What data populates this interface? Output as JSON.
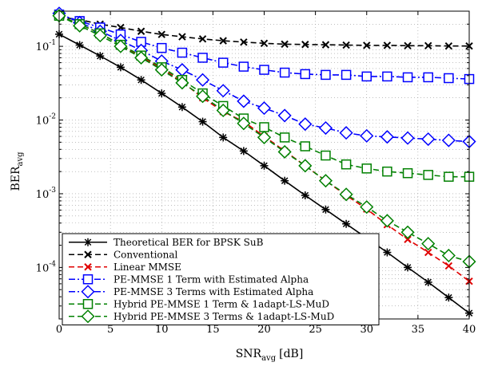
{
  "chart_data": {
    "type": "line",
    "y_scale": "log",
    "xlim": [
      0,
      40
    ],
    "ylim": [
      2e-05,
      0.3
    ],
    "grid": true,
    "legend_position": "bottom-left",
    "xlabel_main": "SNR",
    "xlabel_sub": "avg",
    "xlabel_unit": "[dB]",
    "ylabel_main": "BER",
    "ylabel_sub": "avg",
    "x_ticks": [
      0,
      5,
      10,
      15,
      20,
      25,
      30,
      35,
      40
    ],
    "y_ticks": [
      {
        "value": 0.0001,
        "base": "10",
        "exp": "-4"
      },
      {
        "value": 0.001,
        "base": "10",
        "exp": "-3"
      },
      {
        "value": 0.01,
        "base": "10",
        "exp": "-2"
      },
      {
        "value": 0.1,
        "base": "10",
        "exp": "-1"
      }
    ],
    "series": [
      {
        "name": "Theoretical BER for BPSK SuB",
        "color": "#000000",
        "dash": "solid",
        "marker": "star",
        "x": [
          0,
          2,
          4,
          6,
          8,
          10,
          12,
          14,
          16,
          18,
          20,
          22,
          24,
          26,
          28,
          30,
          32,
          34,
          36,
          38,
          40
        ],
        "y": [
          0.146,
          0.104,
          0.074,
          0.052,
          0.035,
          0.023,
          0.015,
          0.0095,
          0.0058,
          0.0038,
          0.0024,
          0.0015,
          0.00095,
          0.00061,
          0.00039,
          0.00025,
          0.00016,
          0.0001,
          6.3e-05,
          3.9e-05,
          2.4e-05
        ]
      },
      {
        "name": "Conventional",
        "color": "#000000",
        "dash": "dashed",
        "marker": "x",
        "x": [
          0,
          2,
          4,
          6,
          8,
          10,
          12,
          14,
          16,
          18,
          20,
          22,
          24,
          26,
          28,
          30,
          32,
          34,
          36,
          38,
          40
        ],
        "y": [
          0.25,
          0.23,
          0.2,
          0.18,
          0.16,
          0.145,
          0.135,
          0.126,
          0.119,
          0.114,
          0.11,
          0.107,
          0.106,
          0.105,
          0.104,
          0.103,
          0.103,
          0.102,
          0.102,
          0.101,
          0.101
        ]
      },
      {
        "name": "Linear MMSE",
        "color": "#e00000",
        "dash": "dashed",
        "marker": "x",
        "x": [
          0,
          2,
          4,
          6,
          8,
          10,
          12,
          14,
          16,
          18,
          20,
          22,
          24,
          26,
          28,
          30,
          32,
          34,
          36,
          38,
          40
        ],
        "y": [
          0.26,
          0.2,
          0.15,
          0.105,
          0.072,
          0.05,
          0.033,
          0.02,
          0.013,
          0.0095,
          0.006,
          0.0038,
          0.0024,
          0.0015,
          0.00095,
          0.00062,
          0.00038,
          0.00024,
          0.00016,
          0.000105,
          6.5e-05
        ]
      },
      {
        "name": "PE-MMSE 1 Term with Estimated Alpha",
        "color": "#0000ff",
        "dash": "dashdot",
        "marker": "square",
        "x": [
          0,
          2,
          4,
          6,
          8,
          10,
          12,
          14,
          16,
          18,
          20,
          22,
          24,
          26,
          28,
          30,
          32,
          34,
          36,
          38,
          40
        ],
        "y": [
          0.27,
          0.22,
          0.18,
          0.145,
          0.115,
          0.095,
          0.082,
          0.07,
          0.06,
          0.053,
          0.048,
          0.044,
          0.042,
          0.041,
          0.041,
          0.039,
          0.039,
          0.038,
          0.038,
          0.037,
          0.036
        ]
      },
      {
        "name": "PE-MMSE 3 Terms with Estimated Alpha",
        "color": "#0000ff",
        "dash": "dashdot",
        "marker": "diamond",
        "x": [
          0,
          2,
          4,
          6,
          8,
          10,
          12,
          14,
          16,
          18,
          20,
          22,
          24,
          26,
          28,
          30,
          32,
          34,
          36,
          38,
          40
        ],
        "y": [
          0.28,
          0.21,
          0.16,
          0.12,
          0.088,
          0.063,
          0.048,
          0.035,
          0.025,
          0.018,
          0.0145,
          0.0115,
          0.0088,
          0.0078,
          0.0067,
          0.0061,
          0.0059,
          0.0057,
          0.0055,
          0.0053,
          0.0051
        ]
      },
      {
        "name": "Hybrid PE-MMSE 1 Term & 1adapt-LS-MuD",
        "color": "#008000",
        "dash": "dashed",
        "marker": "square",
        "x": [
          0,
          2,
          4,
          6,
          8,
          10,
          12,
          14,
          16,
          18,
          20,
          22,
          24,
          26,
          28,
          30,
          32,
          34,
          36,
          38,
          40
        ],
        "y": [
          0.26,
          0.2,
          0.15,
          0.105,
          0.075,
          0.052,
          0.035,
          0.023,
          0.0155,
          0.0105,
          0.008,
          0.0058,
          0.0044,
          0.0033,
          0.0025,
          0.0022,
          0.002,
          0.0019,
          0.0018,
          0.0017,
          0.0017
        ]
      },
      {
        "name": "Hybrid PE-MMSE 3 Terms & 1adapt-LS-MuD",
        "color": "#008000",
        "dash": "dashed",
        "marker": "diamond",
        "x": [
          0,
          2,
          4,
          6,
          8,
          10,
          12,
          14,
          16,
          18,
          20,
          22,
          24,
          26,
          28,
          30,
          32,
          34,
          36,
          38,
          40
        ],
        "y": [
          0.26,
          0.19,
          0.14,
          0.1,
          0.07,
          0.048,
          0.032,
          0.021,
          0.0135,
          0.009,
          0.0058,
          0.0037,
          0.0024,
          0.0015,
          0.00098,
          0.00066,
          0.00043,
          0.0003,
          0.00021,
          0.000145,
          0.00012
        ]
      }
    ]
  }
}
